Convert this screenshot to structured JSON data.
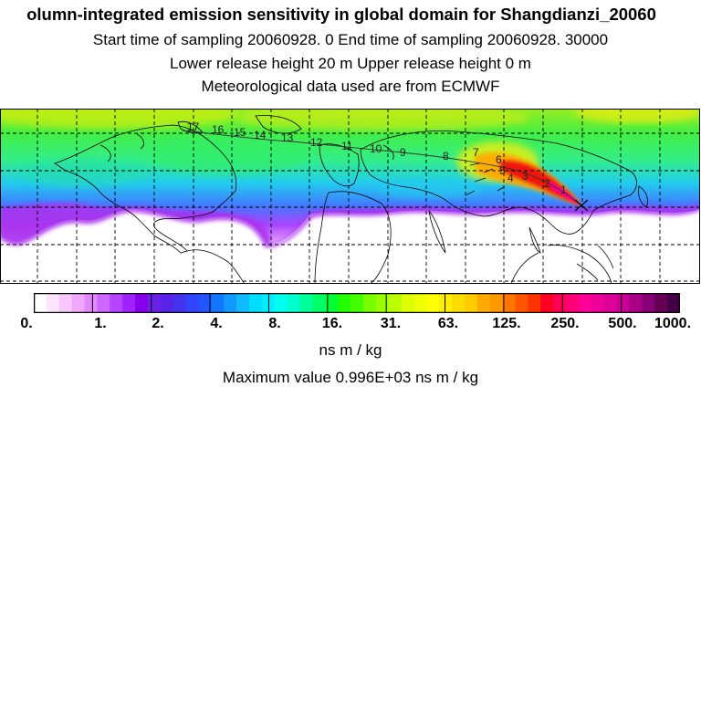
{
  "header": {
    "title": "olumn-integrated emission sensitivity in global domain for Shangdianzi_20060",
    "sampling": "Start time of sampling 20060928.     0     End time of sampling 20060928. 30000",
    "release": "Lower release height   20 m          Upper release height    0 m",
    "meteo": "Meteorological data used are from ECMWF"
  },
  "map": {
    "contour_labels": [
      "17",
      "16",
      "15",
      "14",
      "13",
      "12",
      "11",
      "10",
      "9",
      "8",
      "7",
      "6",
      "5",
      "4",
      "3",
      "2",
      "1"
    ],
    "colors": {
      "low": "#cc55ee",
      "cyan": "#22ccee",
      "green": "#33ee33",
      "lime": "#99ee22",
      "yellow": "#ffee00",
      "orange": "#ff9900",
      "red": "#ee1111",
      "magenta": "#ff0088"
    }
  },
  "colorbar": {
    "labels": [
      "0.",
      "1.",
      "2.",
      "4.",
      "8.",
      "16.",
      "31.",
      "63.",
      "125.",
      "250.",
      "500.",
      "1000."
    ],
    "colors": [
      "#ffffff",
      "#ffe4ff",
      "#f8c8ff",
      "#f0a8ff",
      "#e488ff",
      "#cc66ff",
      "#b844ff",
      "#a222ff",
      "#8800ee",
      "#6a22e6",
      "#5a22e6",
      "#4433ee",
      "#3344ff",
      "#2255ff",
      "#1177ff",
      "#1199ff",
      "#11bbff",
      "#00ddff",
      "#00eeff",
      "#00ffee",
      "#00ffcc",
      "#00ff99",
      "#00ff66",
      "#00ff33",
      "#22ff00",
      "#44ff00",
      "#77ff00",
      "#99ff00",
      "#bbff00",
      "#ddff00",
      "#eeff00",
      "#ffff00",
      "#ffee00",
      "#ffdd00",
      "#ffcc00",
      "#ffaa00",
      "#ff9900",
      "#ff7700",
      "#ff5500",
      "#ff3300",
      "#ff0022",
      "#ff0055",
      "#ff0077",
      "#ff0099",
      "#ee0099",
      "#dd0099",
      "#cc0099",
      "#aa0088",
      "#880077",
      "#660055",
      "#440044"
    ],
    "units": "ns m / kg",
    "maximum": "Maximum value  0.996E+03 ns m / kg"
  }
}
